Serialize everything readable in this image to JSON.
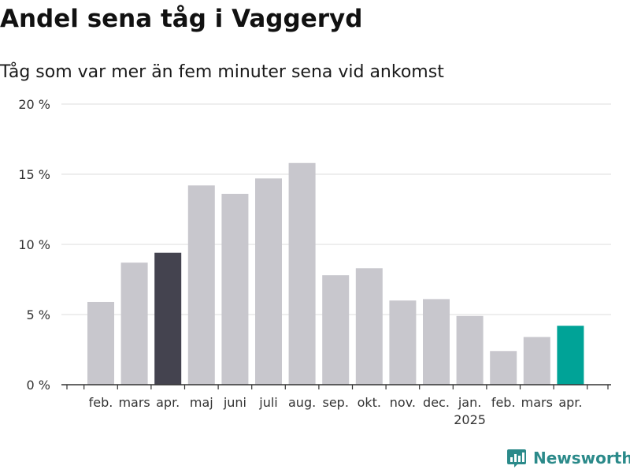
{
  "header": {
    "title": "Andel sena tåg i Vaggeryd",
    "subtitle": "Tåg som var mer än fem minuter sena vid ankomst"
  },
  "brand": {
    "name": "Newsworthy",
    "icon": "newsworthy-logo-icon",
    "color": "#2b8a8a"
  },
  "chart_data": {
    "type": "bar",
    "title": "Andel sena tåg i Vaggeryd",
    "subtitle": "Tåg som var mer än fem minuter sena vid ankomst",
    "xlabel": "",
    "ylabel": "",
    "ylim": [
      0,
      20
    ],
    "yticks": [
      0,
      5,
      10,
      15,
      20
    ],
    "ytick_labels": [
      "0 %",
      "5 %",
      "10 %",
      "15 %",
      "20 %"
    ],
    "grid": true,
    "categories": [
      "feb.",
      "mars",
      "apr.",
      "maj",
      "juni",
      "juli",
      "aug.",
      "sep.",
      "okt.",
      "nov.",
      "dec.",
      "jan.",
      "feb.",
      "mars",
      "apr."
    ],
    "year_label": {
      "text": "2025",
      "under_category_index": 11
    },
    "values": [
      5.9,
      8.7,
      9.4,
      14.2,
      13.6,
      14.7,
      15.8,
      7.8,
      8.3,
      6.0,
      6.1,
      4.9,
      2.4,
      3.4,
      4.2
    ],
    "bar_colors": [
      "#c8c7cd",
      "#c8c7cd",
      "#44434f",
      "#c8c7cd",
      "#c8c7cd",
      "#c8c7cd",
      "#c8c7cd",
      "#c8c7cd",
      "#c8c7cd",
      "#c8c7cd",
      "#c8c7cd",
      "#c8c7cd",
      "#c8c7cd",
      "#c8c7cd",
      "#00a397"
    ],
    "colors": {
      "default_bar": "#c8c7cd",
      "highlight_previous_year": "#44434f",
      "highlight_current": "#00a397",
      "grid": "#dddddd",
      "axis": "#333333"
    }
  }
}
